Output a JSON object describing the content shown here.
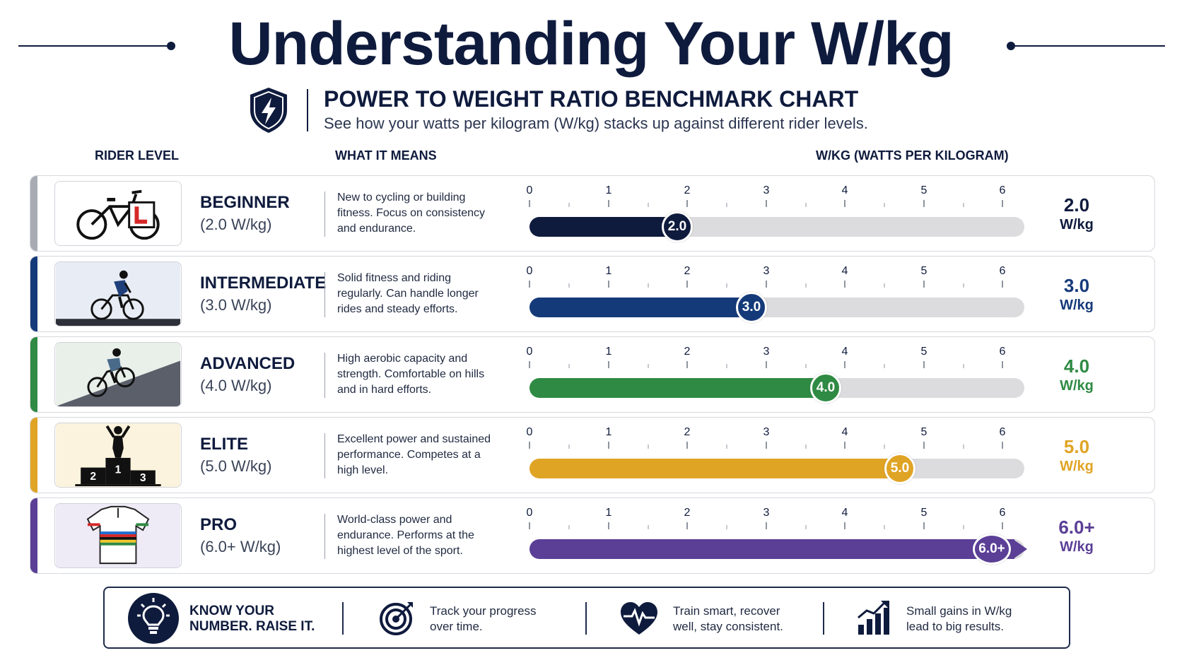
{
  "title": "Understanding Your W/kg",
  "subtitle": {
    "heading": "POWER TO WEIGHT RATIO BENCHMARK CHART",
    "description": "See how your watts per kilogram (W/kg) stacks up against different rider levels."
  },
  "columns": {
    "rider_level": "RIDER LEVEL",
    "what_it_means": "WHAT IT MEANS",
    "wkg": "W/KG (WATTS PER KILOGRAM)"
  },
  "scale_labels": [
    "0",
    "1",
    "2",
    "3",
    "4",
    "5",
    "6"
  ],
  "levels": [
    {
      "name": "BEGINNER",
      "range": "(2.0 W/kg)",
      "meaning": "New to cycling or building fitness. Focus on consistency and endurance.",
      "value": 2.0,
      "marker": "2.0",
      "value_big": "2.0",
      "unit": "W/kg",
      "color": "#0f1b3d",
      "accent": "#a8abb2",
      "icon": "learner-bike-icon"
    },
    {
      "name": "INTERMEDIATE",
      "range": "(3.0 W/kg)",
      "meaning": "Solid fitness and riding regularly. Can handle longer rides and steady efforts.",
      "value": 3.0,
      "marker": "3.0",
      "value_big": "3.0",
      "unit": "W/kg",
      "color": "#153a7a",
      "accent": "#153a7a",
      "icon": "road-cyclist-icon"
    },
    {
      "name": "ADVANCED",
      "range": "(4.0 W/kg)",
      "meaning": "High aerobic capacity and strength. Comfortable on hills and in hard efforts.",
      "value": 4.0,
      "marker": "4.0",
      "value_big": "4.0",
      "unit": "W/kg",
      "color": "#2f8a43",
      "accent": "#2f8a43",
      "icon": "climbing-cyclist-icon"
    },
    {
      "name": "ELITE",
      "range": "(5.0 W/kg)",
      "meaning": "Excellent power and sustained performance. Competes at a high level.",
      "value": 5.0,
      "marker": "5.0",
      "value_big": "5.0",
      "unit": "W/kg",
      "color": "#e0a425",
      "accent": "#e0a425",
      "icon": "podium-icon",
      "podium_labels": [
        "1",
        "2",
        "3"
      ]
    },
    {
      "name": "PRO",
      "range": "(6.0+ W/kg)",
      "meaning": "World-class power and endurance. Performs at the highest level of the sport.",
      "value": 6.0,
      "marker": "6.0+",
      "value_big": "6.0+",
      "unit": "W/kg",
      "color": "#5b3f96",
      "accent": "#5b3f96",
      "icon": "rainbow-jersey-icon",
      "arrow": true
    }
  ],
  "footer": [
    {
      "icon": "lightbulb-icon",
      "text_lines": [
        "KNOW YOUR",
        "NUMBER. RAISE IT."
      ],
      "bold": true
    },
    {
      "icon": "target-icon",
      "text_lines": [
        "Track your progress",
        "over time."
      ]
    },
    {
      "icon": "heart-pulse-icon",
      "text_lines": [
        "Train smart, recover",
        "well, stay consistent."
      ]
    },
    {
      "icon": "growth-chart-icon",
      "text_lines": [
        "Small gains in W/kg",
        "lead to big results."
      ]
    }
  ]
}
